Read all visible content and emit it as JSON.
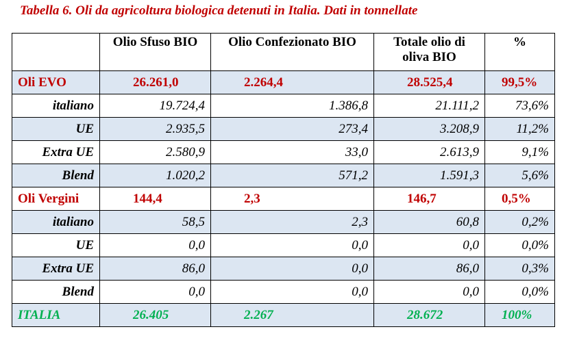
{
  "caption": "Tabella 6. Oli da agricoltura biologica detenuti in Italia. Dati in tonnellate",
  "headers": [
    "",
    "Olio Sfuso BIO",
    "Olio Confezionato BIO",
    "Totale olio di oliva BIO",
    "%"
  ],
  "rows": [
    {
      "label": "Oli EVO",
      "sfuso": "26.261,0",
      "confezionato": "2.264,4",
      "totale": "28.525,4",
      "pct": "99,5%"
    },
    {
      "label": "italiano",
      "sfuso": "19.724,4",
      "confezionato": "1.386,8",
      "totale": "21.111,2",
      "pct": "73,6%"
    },
    {
      "label": "UE",
      "sfuso": "2.935,5",
      "confezionato": "273,4",
      "totale": "3.208,9",
      "pct": "11,2%"
    },
    {
      "label": "Extra UE",
      "sfuso": "2.580,9",
      "confezionato": "33,0",
      "totale": "2.613,9",
      "pct": "9,1%"
    },
    {
      "label": "Blend",
      "sfuso": "1.020,2",
      "confezionato": "571,2",
      "totale": "1.591,3",
      "pct": "5,6%"
    },
    {
      "label": "Oli Vergini",
      "sfuso": "144,4",
      "confezionato": "2,3",
      "totale": "146,7",
      "pct": "0,5%"
    },
    {
      "label": "italiano",
      "sfuso": "58,5",
      "confezionato": "2,3",
      "totale": "60,8",
      "pct": "0,2%"
    },
    {
      "label": "UE",
      "sfuso": "0,0",
      "confezionato": "0,0",
      "totale": "0,0",
      "pct": "0,0%"
    },
    {
      "label": "Extra UE",
      "sfuso": "86,0",
      "confezionato": "0,0",
      "totale": "86,0",
      "pct": "0,3%"
    },
    {
      "label": "Blend",
      "sfuso": "0,0",
      "confezionato": "0,0",
      "totale": "0,0",
      "pct": "0,0%"
    },
    {
      "label": "ITALIA",
      "sfuso": "26.405",
      "confezionato": "2.267",
      "totale": "28.672",
      "pct": "100%"
    }
  ],
  "colors": {
    "caption": "#c00000",
    "category": "#c00000",
    "total": "#00b050",
    "band": "#dce6f2"
  }
}
